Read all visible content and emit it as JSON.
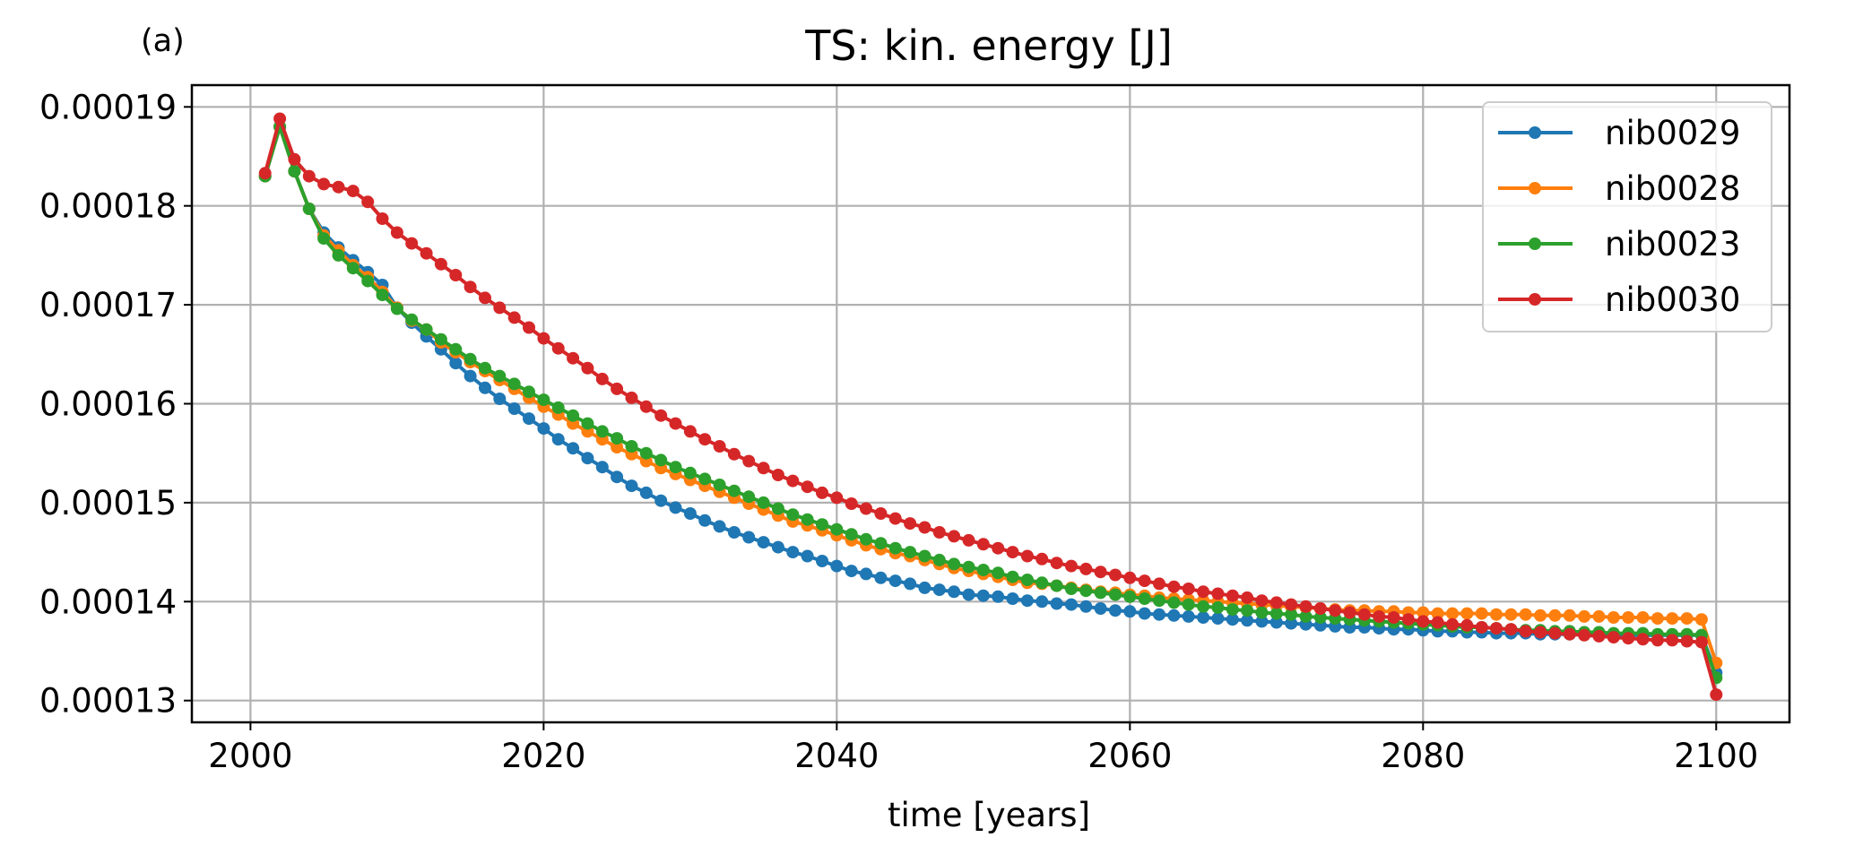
{
  "panel_label": "(a)",
  "chart_data": {
    "type": "line",
    "title": "TS: kin. energy [J]",
    "xlabel": "time [years]",
    "ylabel": "",
    "xlim": [
      1996,
      2105
    ],
    "ylim": [
      0.0001278,
      0.0001922
    ],
    "xticks": [
      2000,
      2020,
      2040,
      2060,
      2080,
      2100
    ],
    "xtick_labels": [
      "2000",
      "2020",
      "2040",
      "2060",
      "2080",
      "2100"
    ],
    "yticks": [
      0.00013,
      0.00014,
      0.00015,
      0.00016,
      0.00017,
      0.00018,
      0.00019
    ],
    "ytick_labels": [
      "0.00013",
      "0.00014",
      "0.00015",
      "0.00016",
      "0.00017",
      "0.00018",
      "0.00019"
    ],
    "grid": true,
    "legend_position": "top-right",
    "marker": "circle",
    "x": [
      2001,
      2002,
      2003,
      2004,
      2005,
      2006,
      2007,
      2008,
      2009,
      2010,
      2011,
      2012,
      2013,
      2014,
      2015,
      2016,
      2017,
      2018,
      2019,
      2020,
      2021,
      2022,
      2023,
      2024,
      2025,
      2026,
      2027,
      2028,
      2029,
      2030,
      2031,
      2032,
      2033,
      2034,
      2035,
      2036,
      2037,
      2038,
      2039,
      2040,
      2041,
      2042,
      2043,
      2044,
      2045,
      2046,
      2047,
      2048,
      2049,
      2050,
      2051,
      2052,
      2053,
      2054,
      2055,
      2056,
      2057,
      2058,
      2059,
      2060,
      2061,
      2062,
      2063,
      2064,
      2065,
      2066,
      2067,
      2068,
      2069,
      2070,
      2071,
      2072,
      2073,
      2074,
      2075,
      2076,
      2077,
      2078,
      2079,
      2080,
      2081,
      2082,
      2083,
      2084,
      2085,
      2086,
      2087,
      2088,
      2089,
      2090,
      2091,
      2092,
      2093,
      2094,
      2095,
      2096,
      2097,
      2098,
      2099,
      2100
    ],
    "series": [
      {
        "name": "nib0029",
        "color": "#1f77b4",
        "values": [
          0.000183,
          0.000188,
          0.0001835,
          0.0001797,
          0.0001773,
          0.0001758,
          0.0001745,
          0.0001733,
          0.000172,
          0.0001697,
          0.0001682,
          0.0001668,
          0.0001655,
          0.0001641,
          0.0001628,
          0.0001616,
          0.0001605,
          0.0001595,
          0.0001585,
          0.0001575,
          0.0001564,
          0.0001555,
          0.0001545,
          0.0001536,
          0.0001526,
          0.0001517,
          0.000151,
          0.0001502,
          0.0001495,
          0.0001489,
          0.0001482,
          0.0001476,
          0.000147,
          0.0001465,
          0.000146,
          0.0001455,
          0.000145,
          0.0001446,
          0.0001441,
          0.0001436,
          0.0001431,
          0.0001428,
          0.0001424,
          0.0001421,
          0.0001418,
          0.0001414,
          0.0001412,
          0.000141,
          0.0001407,
          0.0001406,
          0.0001405,
          0.0001403,
          0.0001401,
          0.00014,
          0.0001398,
          0.0001397,
          0.0001395,
          0.0001393,
          0.0001391,
          0.000139,
          0.0001388,
          0.0001387,
          0.0001386,
          0.0001385,
          0.0001384,
          0.0001383,
          0.0001382,
          0.0001381,
          0.000138,
          0.0001379,
          0.0001378,
          0.0001377,
          0.0001376,
          0.0001375,
          0.0001374,
          0.0001374,
          0.0001373,
          0.0001372,
          0.0001372,
          0.0001371,
          0.000137,
          0.000137,
          0.0001369,
          0.0001369,
          0.0001368,
          0.0001368,
          0.0001368,
          0.0001367,
          0.0001367,
          0.0001367,
          0.0001367,
          0.0001367,
          0.0001366,
          0.0001366,
          0.0001366,
          0.0001366,
          0.0001366,
          0.0001366,
          0.0001366,
          0.0001328
        ]
      },
      {
        "name": "nib0028",
        "color": "#ff7f0e",
        "values": [
          0.000183,
          0.000188,
          0.0001835,
          0.0001797,
          0.000177,
          0.0001755,
          0.000174,
          0.0001728,
          0.0001713,
          0.0001697,
          0.0001684,
          0.0001675,
          0.0001662,
          0.0001652,
          0.0001642,
          0.0001633,
          0.0001624,
          0.0001615,
          0.0001606,
          0.0001597,
          0.0001589,
          0.000158,
          0.0001572,
          0.0001564,
          0.0001556,
          0.0001549,
          0.0001542,
          0.0001535,
          0.0001529,
          0.0001523,
          0.0001517,
          0.0001511,
          0.0001505,
          0.0001499,
          0.0001493,
          0.0001487,
          0.0001481,
          0.0001477,
          0.0001472,
          0.0001467,
          0.0001462,
          0.0001457,
          0.0001453,
          0.0001449,
          0.0001446,
          0.0001442,
          0.0001438,
          0.0001434,
          0.0001431,
          0.0001428,
          0.0001425,
          0.0001422,
          0.0001419,
          0.0001418,
          0.0001416,
          0.0001414,
          0.0001412,
          0.000141,
          0.0001409,
          0.0001407,
          0.0001406,
          0.0001404,
          0.0001403,
          0.0001402,
          0.0001401,
          0.00014,
          0.0001399,
          0.0001398,
          0.0001397,
          0.0001396,
          0.0001395,
          0.0001394,
          0.0001393,
          0.0001392,
          0.0001391,
          0.0001391,
          0.000139,
          0.000139,
          0.0001389,
          0.0001389,
          0.0001388,
          0.0001388,
          0.0001388,
          0.0001388,
          0.0001387,
          0.0001387,
          0.0001387,
          0.0001386,
          0.0001386,
          0.0001386,
          0.0001385,
          0.0001385,
          0.0001384,
          0.0001384,
          0.0001384,
          0.0001383,
          0.0001383,
          0.0001383,
          0.0001382,
          0.0001338
        ]
      },
      {
        "name": "nib0023",
        "color": "#2ca02c",
        "values": [
          0.000183,
          0.000188,
          0.0001835,
          0.0001797,
          0.0001767,
          0.000175,
          0.0001737,
          0.0001724,
          0.000171,
          0.0001696,
          0.0001685,
          0.0001675,
          0.0001665,
          0.0001655,
          0.0001645,
          0.0001636,
          0.0001628,
          0.000162,
          0.0001612,
          0.0001604,
          0.0001596,
          0.0001588,
          0.000158,
          0.0001572,
          0.0001565,
          0.0001557,
          0.000155,
          0.0001543,
          0.0001536,
          0.000153,
          0.0001524,
          0.0001518,
          0.0001512,
          0.0001506,
          0.00015,
          0.0001494,
          0.0001488,
          0.0001483,
          0.0001478,
          0.0001473,
          0.0001468,
          0.0001463,
          0.0001459,
          0.0001454,
          0.000145,
          0.0001446,
          0.0001442,
          0.0001438,
          0.0001435,
          0.0001432,
          0.0001429,
          0.0001425,
          0.0001422,
          0.0001419,
          0.0001416,
          0.0001413,
          0.0001411,
          0.0001409,
          0.0001407,
          0.0001405,
          0.0001403,
          0.0001401,
          0.0001399,
          0.0001397,
          0.0001395,
          0.0001394,
          0.0001392,
          0.0001391,
          0.0001389,
          0.0001388,
          0.0001387,
          0.0001385,
          0.0001384,
          0.0001383,
          0.0001382,
          0.0001381,
          0.000138,
          0.0001379,
          0.0001378,
          0.0001377,
          0.0001376,
          0.0001375,
          0.0001374,
          0.0001374,
          0.0001373,
          0.0001372,
          0.0001371,
          0.0001371,
          0.000137,
          0.000137,
          0.0001369,
          0.0001369,
          0.0001368,
          0.0001368,
          0.0001368,
          0.0001367,
          0.0001367,
          0.0001367,
          0.0001366,
          0.0001323
        ]
      },
      {
        "name": "nib0030",
        "color": "#d62728",
        "values": [
          0.0001833,
          0.0001888,
          0.0001847,
          0.000183,
          0.0001822,
          0.0001819,
          0.0001815,
          0.0001804,
          0.0001787,
          0.0001773,
          0.0001762,
          0.0001752,
          0.0001741,
          0.000173,
          0.0001718,
          0.0001707,
          0.0001697,
          0.0001687,
          0.0001677,
          0.0001666,
          0.0001656,
          0.0001646,
          0.0001636,
          0.0001625,
          0.0001615,
          0.0001606,
          0.0001597,
          0.0001588,
          0.000158,
          0.0001572,
          0.0001564,
          0.0001557,
          0.0001549,
          0.0001542,
          0.0001535,
          0.0001528,
          0.0001522,
          0.0001516,
          0.000151,
          0.0001505,
          0.0001499,
          0.0001494,
          0.0001489,
          0.0001484,
          0.0001479,
          0.0001475,
          0.000147,
          0.0001466,
          0.0001462,
          0.0001458,
          0.0001454,
          0.000145,
          0.0001446,
          0.0001443,
          0.0001439,
          0.0001436,
          0.0001433,
          0.000143,
          0.0001427,
          0.0001424,
          0.0001421,
          0.0001418,
          0.0001415,
          0.0001413,
          0.000141,
          0.0001408,
          0.0001406,
          0.0001404,
          0.0001401,
          0.0001399,
          0.0001397,
          0.0001395,
          0.0001393,
          0.0001391,
          0.0001389,
          0.0001387,
          0.0001385,
          0.0001384,
          0.0001382,
          0.000138,
          0.0001379,
          0.0001377,
          0.0001376,
          0.0001374,
          0.0001373,
          0.0001372,
          0.000137,
          0.0001369,
          0.0001368,
          0.0001367,
          0.0001366,
          0.0001365,
          0.0001364,
          0.0001363,
          0.0001362,
          0.0001361,
          0.0001361,
          0.000136,
          0.0001359,
          0.0001306
        ]
      }
    ]
  }
}
